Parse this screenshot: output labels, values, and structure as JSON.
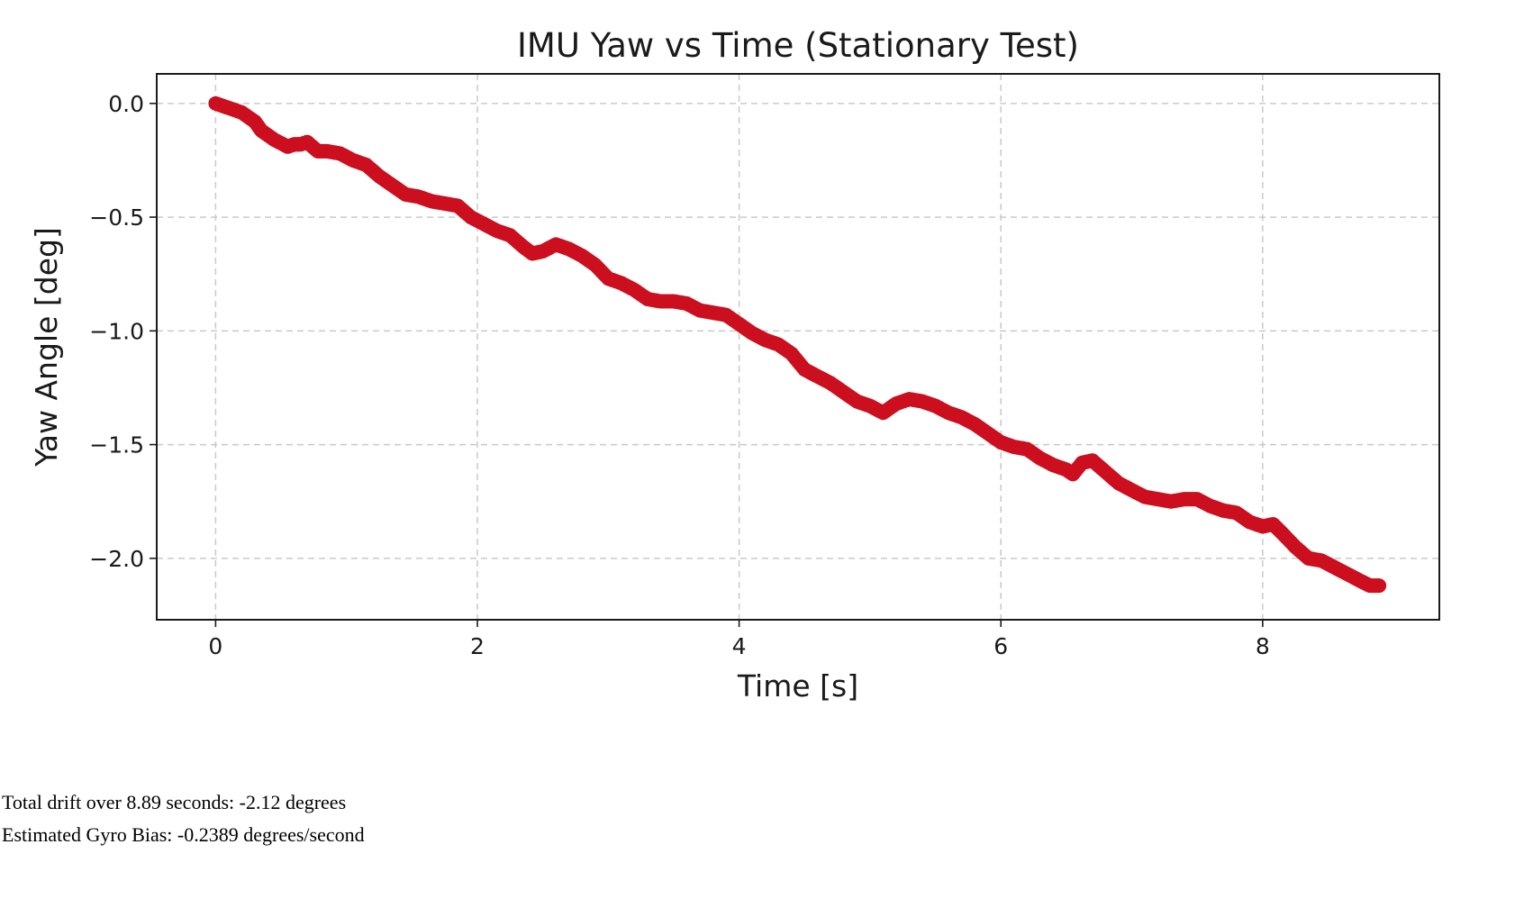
{
  "chart_data": {
    "type": "scatter",
    "title": "IMU Yaw vs Time (Stationary Test)",
    "xlabel": "Time [s]",
    "ylabel": "Yaw Angle [deg]",
    "xlim": [
      -0.45,
      9.35
    ],
    "ylim": [
      -2.27,
      0.13
    ],
    "xticks": [
      0,
      2,
      4,
      6,
      8
    ],
    "xtick_labels": [
      "0",
      "2",
      "4",
      "6",
      "8"
    ],
    "yticks": [
      0.0,
      -0.5,
      -1.0,
      -1.5,
      -2.0
    ],
    "ytick_labels": [
      "0.0",
      "−0.5",
      "−1.0",
      "−1.5",
      "−2.0"
    ],
    "grid": true,
    "grid_style": "dashed",
    "marker_color": "#cc0f1f",
    "series": [
      {
        "points": [
          [
            0.0,
            0.0
          ],
          [
            0.1,
            -0.02
          ],
          [
            0.2,
            -0.04
          ],
          [
            0.3,
            -0.08
          ],
          [
            0.35,
            -0.12
          ],
          [
            0.45,
            -0.16
          ],
          [
            0.55,
            -0.19
          ],
          [
            0.6,
            -0.18
          ],
          [
            0.65,
            -0.18
          ],
          [
            0.7,
            -0.17
          ],
          [
            0.78,
            -0.21
          ],
          [
            0.85,
            -0.21
          ],
          [
            0.95,
            -0.22
          ],
          [
            1.05,
            -0.25
          ],
          [
            1.15,
            -0.27
          ],
          [
            1.25,
            -0.32
          ],
          [
            1.35,
            -0.36
          ],
          [
            1.45,
            -0.4
          ],
          [
            1.55,
            -0.41
          ],
          [
            1.65,
            -0.43
          ],
          [
            1.75,
            -0.44
          ],
          [
            1.85,
            -0.45
          ],
          [
            1.95,
            -0.5
          ],
          [
            2.05,
            -0.53
          ],
          [
            2.15,
            -0.56
          ],
          [
            2.25,
            -0.58
          ],
          [
            2.35,
            -0.63
          ],
          [
            2.42,
            -0.66
          ],
          [
            2.5,
            -0.65
          ],
          [
            2.6,
            -0.62
          ],
          [
            2.7,
            -0.64
          ],
          [
            2.8,
            -0.67
          ],
          [
            2.9,
            -0.71
          ],
          [
            3.0,
            -0.77
          ],
          [
            3.1,
            -0.79
          ],
          [
            3.2,
            -0.82
          ],
          [
            3.3,
            -0.86
          ],
          [
            3.4,
            -0.87
          ],
          [
            3.5,
            -0.87
          ],
          [
            3.6,
            -0.88
          ],
          [
            3.7,
            -0.91
          ],
          [
            3.8,
            -0.92
          ],
          [
            3.9,
            -0.93
          ],
          [
            4.0,
            -0.97
          ],
          [
            4.1,
            -1.01
          ],
          [
            4.2,
            -1.04
          ],
          [
            4.3,
            -1.06
          ],
          [
            4.4,
            -1.1
          ],
          [
            4.5,
            -1.17
          ],
          [
            4.6,
            -1.2
          ],
          [
            4.7,
            -1.23
          ],
          [
            4.8,
            -1.27
          ],
          [
            4.9,
            -1.31
          ],
          [
            5.0,
            -1.33
          ],
          [
            5.1,
            -1.36
          ],
          [
            5.2,
            -1.32
          ],
          [
            5.3,
            -1.3
          ],
          [
            5.4,
            -1.31
          ],
          [
            5.5,
            -1.33
          ],
          [
            5.6,
            -1.36
          ],
          [
            5.7,
            -1.38
          ],
          [
            5.8,
            -1.41
          ],
          [
            5.9,
            -1.45
          ],
          [
            6.0,
            -1.49
          ],
          [
            6.1,
            -1.51
          ],
          [
            6.2,
            -1.52
          ],
          [
            6.3,
            -1.56
          ],
          [
            6.4,
            -1.59
          ],
          [
            6.5,
            -1.61
          ],
          [
            6.55,
            -1.63
          ],
          [
            6.62,
            -1.58
          ],
          [
            6.7,
            -1.57
          ],
          [
            6.8,
            -1.62
          ],
          [
            6.9,
            -1.67
          ],
          [
            7.0,
            -1.7
          ],
          [
            7.1,
            -1.73
          ],
          [
            7.2,
            -1.74
          ],
          [
            7.3,
            -1.75
          ],
          [
            7.4,
            -1.74
          ],
          [
            7.5,
            -1.74
          ],
          [
            7.6,
            -1.77
          ],
          [
            7.7,
            -1.79
          ],
          [
            7.8,
            -1.8
          ],
          [
            7.9,
            -1.84
          ],
          [
            8.0,
            -1.86
          ],
          [
            8.08,
            -1.85
          ],
          [
            8.15,
            -1.89
          ],
          [
            8.25,
            -1.95
          ],
          [
            8.35,
            -2.0
          ],
          [
            8.45,
            -2.01
          ],
          [
            8.55,
            -2.04
          ],
          [
            8.65,
            -2.07
          ],
          [
            8.75,
            -2.1
          ],
          [
            8.82,
            -2.12
          ],
          [
            8.89,
            -2.12
          ]
        ]
      }
    ]
  },
  "stats": {
    "drift_text": "Total drift over 8.89 seconds: -2.12 degrees",
    "bias_text": "Estimated Gyro Bias: -0.2389 degrees/second"
  }
}
